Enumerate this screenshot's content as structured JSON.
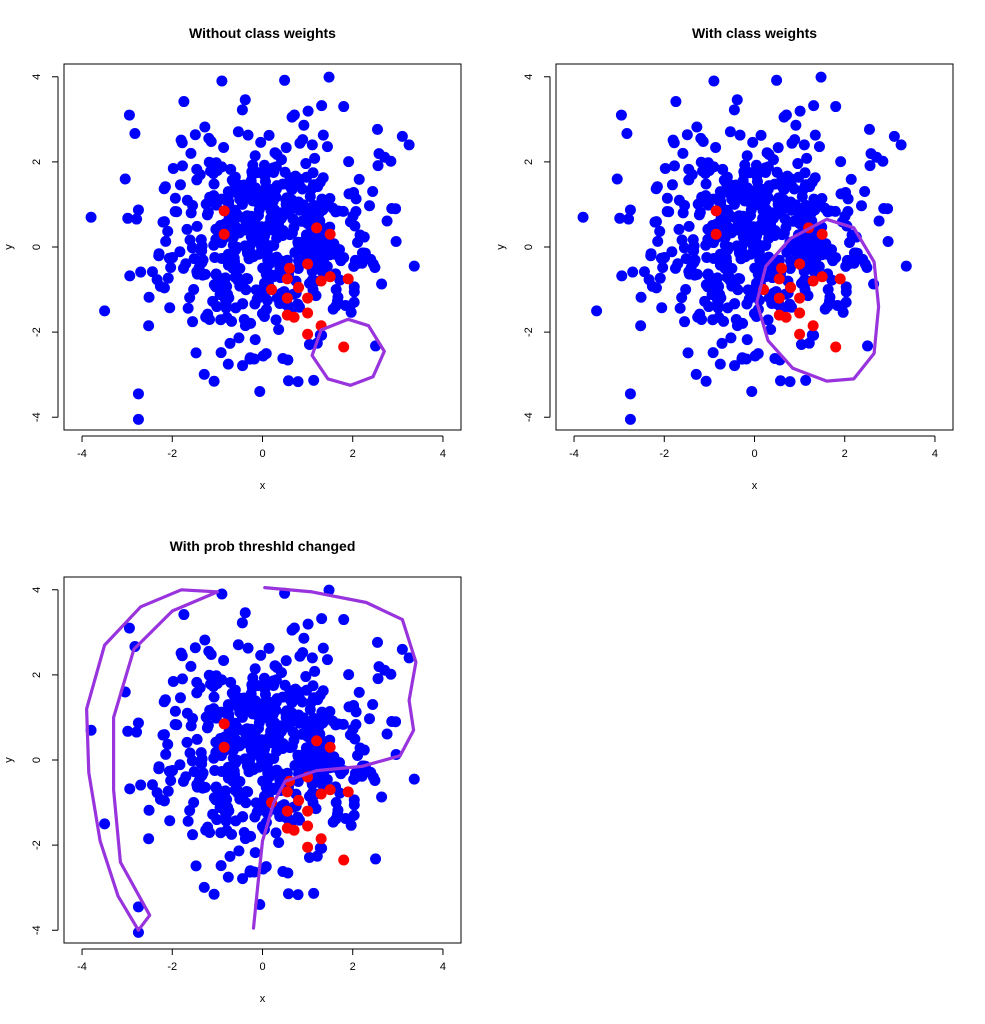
{
  "chart_data": [
    {
      "type": "scatter",
      "title": "Without class weights",
      "xlabel": "x",
      "ylabel": "y",
      "xlim": [
        -4.4,
        4.4
      ],
      "ylim": [
        -4.3,
        4.3
      ],
      "xticks": [
        -4,
        -2,
        0,
        2,
        4
      ],
      "yticks": [
        -4,
        -2,
        0,
        2,
        4
      ],
      "point_colors": {
        "majority": "#0000ff",
        "minority": "#ff0000"
      },
      "boundary_color": "#9933dd",
      "boundary": [
        [
          1.9,
          -1.7
        ],
        [
          2.35,
          -1.85
        ],
        [
          2.7,
          -2.45
        ],
        [
          2.45,
          -3.05
        ],
        [
          1.95,
          -3.25
        ],
        [
          1.45,
          -3.1
        ],
        [
          1.1,
          -2.55
        ],
        [
          1.3,
          -1.95
        ],
        [
          1.9,
          -1.7
        ]
      ],
      "boundary_closed": true
    },
    {
      "type": "scatter",
      "title": "With class weights",
      "xlabel": "x",
      "ylabel": "y",
      "xlim": [
        -4.4,
        4.4
      ],
      "ylim": [
        -4.3,
        4.3
      ],
      "xticks": [
        -4,
        -2,
        0,
        2,
        4
      ],
      "yticks": [
        -4,
        -2,
        0,
        2,
        4
      ],
      "point_colors": {
        "majority": "#0000ff",
        "minority": "#ff0000"
      },
      "boundary_color": "#9933dd",
      "boundary": [
        [
          1.6,
          0.65
        ],
        [
          2.2,
          0.45
        ],
        [
          2.65,
          -0.35
        ],
        [
          2.75,
          -1.4
        ],
        [
          2.65,
          -2.5
        ],
        [
          2.2,
          -3.1
        ],
        [
          1.6,
          -3.15
        ],
        [
          0.85,
          -2.85
        ],
        [
          0.3,
          -2.2
        ],
        [
          0.05,
          -1.3
        ],
        [
          0.25,
          -0.45
        ],
        [
          0.8,
          0.2
        ],
        [
          1.6,
          0.65
        ]
      ],
      "boundary_closed": true
    },
    {
      "type": "scatter",
      "title": "With prob threshld changed",
      "xlabel": "x",
      "ylabel": "y",
      "xlim": [
        -4.4,
        4.4
      ],
      "ylim": [
        -4.3,
        4.3
      ],
      "xticks": [
        -4,
        -2,
        0,
        2,
        4
      ],
      "yticks": [
        -4,
        -2,
        0,
        2,
        4
      ],
      "point_colors": {
        "majority": "#0000ff",
        "minority": "#ff0000"
      },
      "boundary_color": "#9933dd",
      "boundary": [
        [
          -1.0,
          3.95
        ],
        [
          -1.8,
          4.0
        ],
        [
          -2.7,
          3.6
        ],
        [
          -3.5,
          2.7
        ],
        [
          -3.9,
          1.2
        ],
        [
          -3.85,
          -0.3
        ],
        [
          -3.6,
          -1.9
        ],
        [
          -3.2,
          -3.2
        ],
        [
          -2.75,
          -4.0
        ],
        [
          -2.5,
          -3.65
        ],
        [
          -3.15,
          -2.4
        ],
        [
          -3.3,
          -0.7
        ],
        [
          -3.3,
          1.0
        ],
        [
          -2.85,
          2.6
        ],
        [
          -2.0,
          3.5
        ],
        [
          -1.0,
          3.95
        ]
      ],
      "boundary_closed": false,
      "boundary2": [
        [
          0.05,
          4.05
        ],
        [
          1.1,
          3.95
        ],
        [
          2.3,
          3.7
        ],
        [
          3.1,
          3.3
        ],
        [
          3.4,
          2.3
        ],
        [
          3.25,
          1.4
        ],
        [
          3.35,
          0.7
        ],
        [
          3.05,
          0.1
        ],
        [
          2.2,
          -0.15
        ],
        [
          1.2,
          -0.25
        ],
        [
          0.5,
          -0.5
        ],
        [
          0.25,
          -1.0
        ],
        [
          0.0,
          -1.9
        ],
        [
          -0.1,
          -2.9
        ],
        [
          -0.2,
          -3.95
        ]
      ],
      "boundary2_closed": false
    }
  ]
}
